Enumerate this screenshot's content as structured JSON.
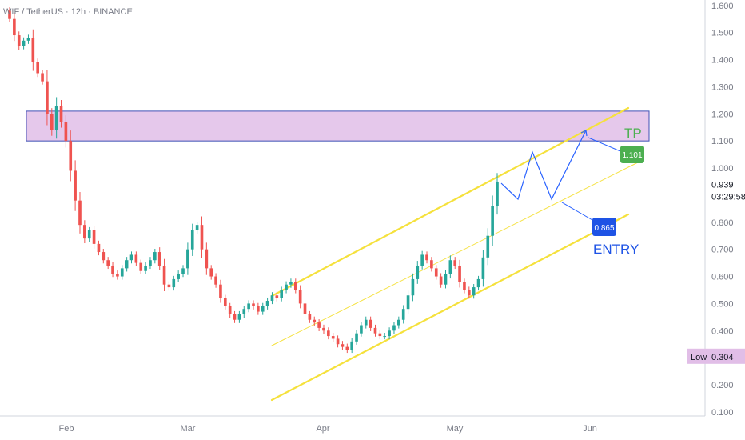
{
  "header": {
    "symbol_text": "WIF / TetherUS · 12h · BINANCE"
  },
  "colors": {
    "up": "#26a69a",
    "down": "#ef5350",
    "channel": "#f5e13c",
    "zone_fill": "#e1bee7",
    "zone_border": "#3f51b5",
    "projection": "#2962ff",
    "tp_label": "#4caf50",
    "entry_label": "#1e53e5",
    "low_tag": "#e1bee7"
  },
  "icons": {
    "path_arrow": "arrow-icon"
  },
  "chart_data": {
    "type": "candlestick",
    "x_axis_labels": [
      "Feb",
      "Mar",
      "Apr",
      "May",
      "Jun"
    ],
    "y_ticks": [
      "1.600",
      "1.500",
      "1.400",
      "1.300",
      "1.200",
      "1.100",
      "1.000",
      "0.900",
      "0.800",
      "0.700",
      "0.600",
      "0.500",
      "0.400",
      "0.300",
      "0.200",
      "0.100"
    ],
    "ylim": [
      0.085,
      1.62
    ],
    "current_price": "0.939",
    "countdown": "03:29:58",
    "low_label": "Low",
    "low_value": "0.304",
    "resistance_zone": {
      "low": 1.1,
      "high": 1.21
    },
    "annotations": {
      "tp_text": "TP",
      "tp_value": "1.101",
      "entry_text": "ENTRY",
      "entry_value": "0.865"
    },
    "closes": [
      1.55,
      1.49,
      1.45,
      1.47,
      1.48,
      1.39,
      1.35,
      1.32,
      1.2,
      1.14,
      1.23,
      1.17,
      1.1,
      0.99,
      0.88,
      0.79,
      0.74,
      0.77,
      0.72,
      0.69,
      0.66,
      0.64,
      0.61,
      0.6,
      0.63,
      0.66,
      0.68,
      0.65,
      0.62,
      0.64,
      0.66,
      0.69,
      0.64,
      0.57,
      0.56,
      0.59,
      0.61,
      0.63,
      0.7,
      0.77,
      0.79,
      0.7,
      0.63,
      0.6,
      0.57,
      0.52,
      0.49,
      0.46,
      0.44,
      0.46,
      0.48,
      0.5,
      0.49,
      0.47,
      0.49,
      0.51,
      0.53,
      0.52,
      0.55,
      0.57,
      0.58,
      0.55,
      0.5,
      0.46,
      0.44,
      0.43,
      0.41,
      0.4,
      0.38,
      0.37,
      0.35,
      0.34,
      0.33,
      0.36,
      0.39,
      0.42,
      0.44,
      0.41,
      0.39,
      0.38,
      0.38,
      0.4,
      0.42,
      0.44,
      0.48,
      0.53,
      0.59,
      0.64,
      0.68,
      0.66,
      0.63,
      0.6,
      0.57,
      0.61,
      0.66,
      0.64,
      0.58,
      0.55,
      0.53,
      0.56,
      0.59,
      0.67,
      0.75,
      0.86,
      0.95
    ]
  }
}
